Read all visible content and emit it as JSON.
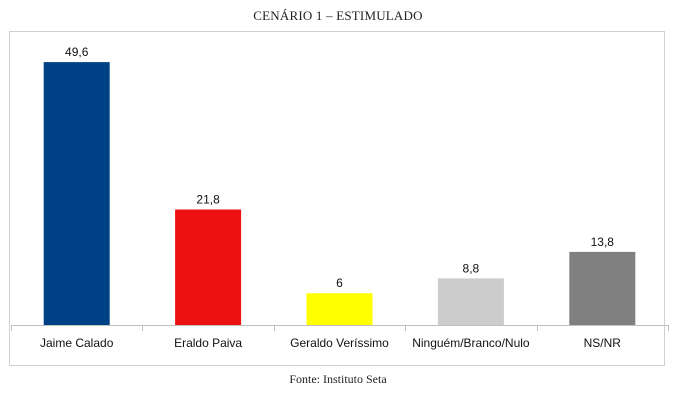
{
  "chart_data": {
    "type": "bar",
    "title": "CENÁRIO 1 – ESTIMULADO",
    "categories": [
      "Jaime Calado",
      "Eraldo Paiva",
      "Geraldo Veríssimo",
      "Ninguém/Branco/Nulo",
      "NS/NR"
    ],
    "values": [
      49.6,
      21.8,
      6,
      8.8,
      13.8
    ],
    "value_labels": [
      "49,6",
      "21,8",
      "6",
      "8,8",
      "13,8"
    ],
    "colors": [
      "#004185",
      "#ee1111",
      "#ffff00",
      "#cccccc",
      "#808080"
    ],
    "ylim": [
      0,
      50
    ],
    "grid": false,
    "legend": "none",
    "xlabel": "",
    "ylabel": ""
  },
  "source": "Fonte: Instituto Seta"
}
